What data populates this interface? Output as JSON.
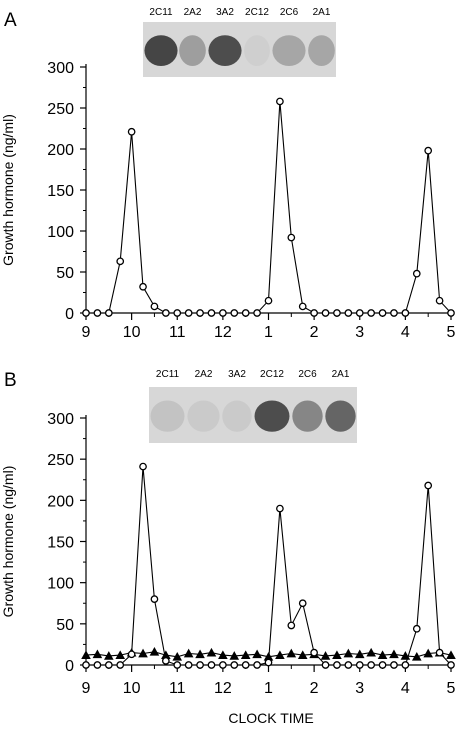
{
  "chart_data": [
    {
      "panel": "A",
      "type": "line",
      "ylabel": "Growth hormone (ng/ml)",
      "xlabel": "",
      "ylim": [
        0,
        300
      ],
      "yticks": [
        0,
        50,
        100,
        150,
        200,
        250,
        300
      ],
      "xlim": [
        9,
        17
      ],
      "xticks": [
        {
          "v": 9,
          "label": "9"
        },
        {
          "v": 10,
          "label": "10"
        },
        {
          "v": 11,
          "label": "11"
        },
        {
          "v": 12,
          "label": "12"
        },
        {
          "v": 13,
          "label": "1"
        },
        {
          "v": 14,
          "label": "2"
        },
        {
          "v": 15,
          "label": "3"
        },
        {
          "v": 16,
          "label": "4"
        },
        {
          "v": 17,
          "label": "5"
        }
      ],
      "blot_labels": [
        "2C11",
        "2A2",
        "3A2",
        "2C12",
        "2C6",
        "2A1"
      ],
      "blot_intensity": [
        0.9,
        0.35,
        0.85,
        0.05,
        0.3,
        0.3
      ],
      "series": [
        {
          "marker": "circle",
          "x": [
            9.0,
            9.25,
            9.5,
            9.75,
            10.0,
            10.25,
            10.5,
            10.75,
            11.0,
            11.25,
            11.5,
            11.75,
            12.0,
            12.25,
            12.5,
            12.75,
            13.0,
            13.25,
            13.5,
            13.75,
            14.0,
            14.25,
            14.5,
            14.75,
            15.0,
            15.25,
            15.5,
            15.75,
            16.0,
            16.25,
            16.5,
            16.75,
            17.0
          ],
          "y": [
            0,
            0,
            0,
            63,
            221,
            32,
            8,
            0,
            0,
            0,
            0,
            0,
            0,
            0,
            0,
            0,
            15,
            258,
            92,
            8,
            0,
            0,
            0,
            0,
            0,
            0,
            0,
            0,
            0,
            48,
            198,
            15,
            0
          ]
        }
      ]
    },
    {
      "panel": "B",
      "type": "line",
      "ylabel": "Growth hormone (ng/ml)",
      "xlabel": "CLOCK TIME",
      "ylim": [
        0,
        300
      ],
      "yticks": [
        0,
        50,
        100,
        150,
        200,
        250,
        300
      ],
      "xlim": [
        9,
        17
      ],
      "xticks": [
        {
          "v": 9,
          "label": "9"
        },
        {
          "v": 10,
          "label": "10"
        },
        {
          "v": 11,
          "label": "11"
        },
        {
          "v": 12,
          "label": "12"
        },
        {
          "v": 13,
          "label": "1"
        },
        {
          "v": 14,
          "label": "2"
        },
        {
          "v": 15,
          "label": "3"
        },
        {
          "v": 16,
          "label": "4"
        },
        {
          "v": 17,
          "label": "5"
        }
      ],
      "blot_labels": [
        "2C11",
        "2A2",
        "3A2",
        "2C12",
        "2C6",
        "2A1"
      ],
      "blot_intensity": [
        0.12,
        0.08,
        0.08,
        0.85,
        0.5,
        0.7
      ],
      "series": [
        {
          "marker": "circle",
          "x": [
            9.0,
            9.25,
            9.5,
            9.75,
            10.0,
            10.25,
            10.5,
            10.75,
            11.0,
            11.25,
            11.5,
            11.75,
            12.0,
            12.25,
            12.5,
            12.75,
            13.0,
            13.25,
            13.5,
            13.75,
            14.0,
            14.25,
            14.5,
            14.75,
            15.0,
            15.25,
            15.5,
            15.75,
            16.0,
            16.25,
            16.5,
            16.75,
            17.0
          ],
          "y": [
            0,
            0,
            0,
            0,
            13,
            241,
            80,
            5,
            0,
            0,
            0,
            0,
            0,
            0,
            0,
            0,
            3,
            190,
            48,
            75,
            15,
            0,
            0,
            0,
            0,
            0,
            0,
            0,
            0,
            44,
            218,
            15,
            0
          ]
        },
        {
          "marker": "triangle",
          "x": [
            9.0,
            9.25,
            9.5,
            9.75,
            10.0,
            10.25,
            10.5,
            10.75,
            11.0,
            11.25,
            11.5,
            11.75,
            12.0,
            12.25,
            12.5,
            12.75,
            13.0,
            13.25,
            13.5,
            13.75,
            14.0,
            14.25,
            14.5,
            14.75,
            15.0,
            15.25,
            15.5,
            15.75,
            16.0,
            16.25,
            16.5,
            16.75,
            17.0
          ],
          "y": [
            12,
            13,
            11,
            12,
            15,
            14,
            16,
            12,
            10,
            14,
            13,
            15,
            12,
            11,
            12,
            13,
            10,
            12,
            14,
            12,
            13,
            11,
            12,
            14,
            13,
            15,
            12,
            13,
            11,
            10,
            14,
            15,
            12
          ]
        }
      ]
    }
  ]
}
